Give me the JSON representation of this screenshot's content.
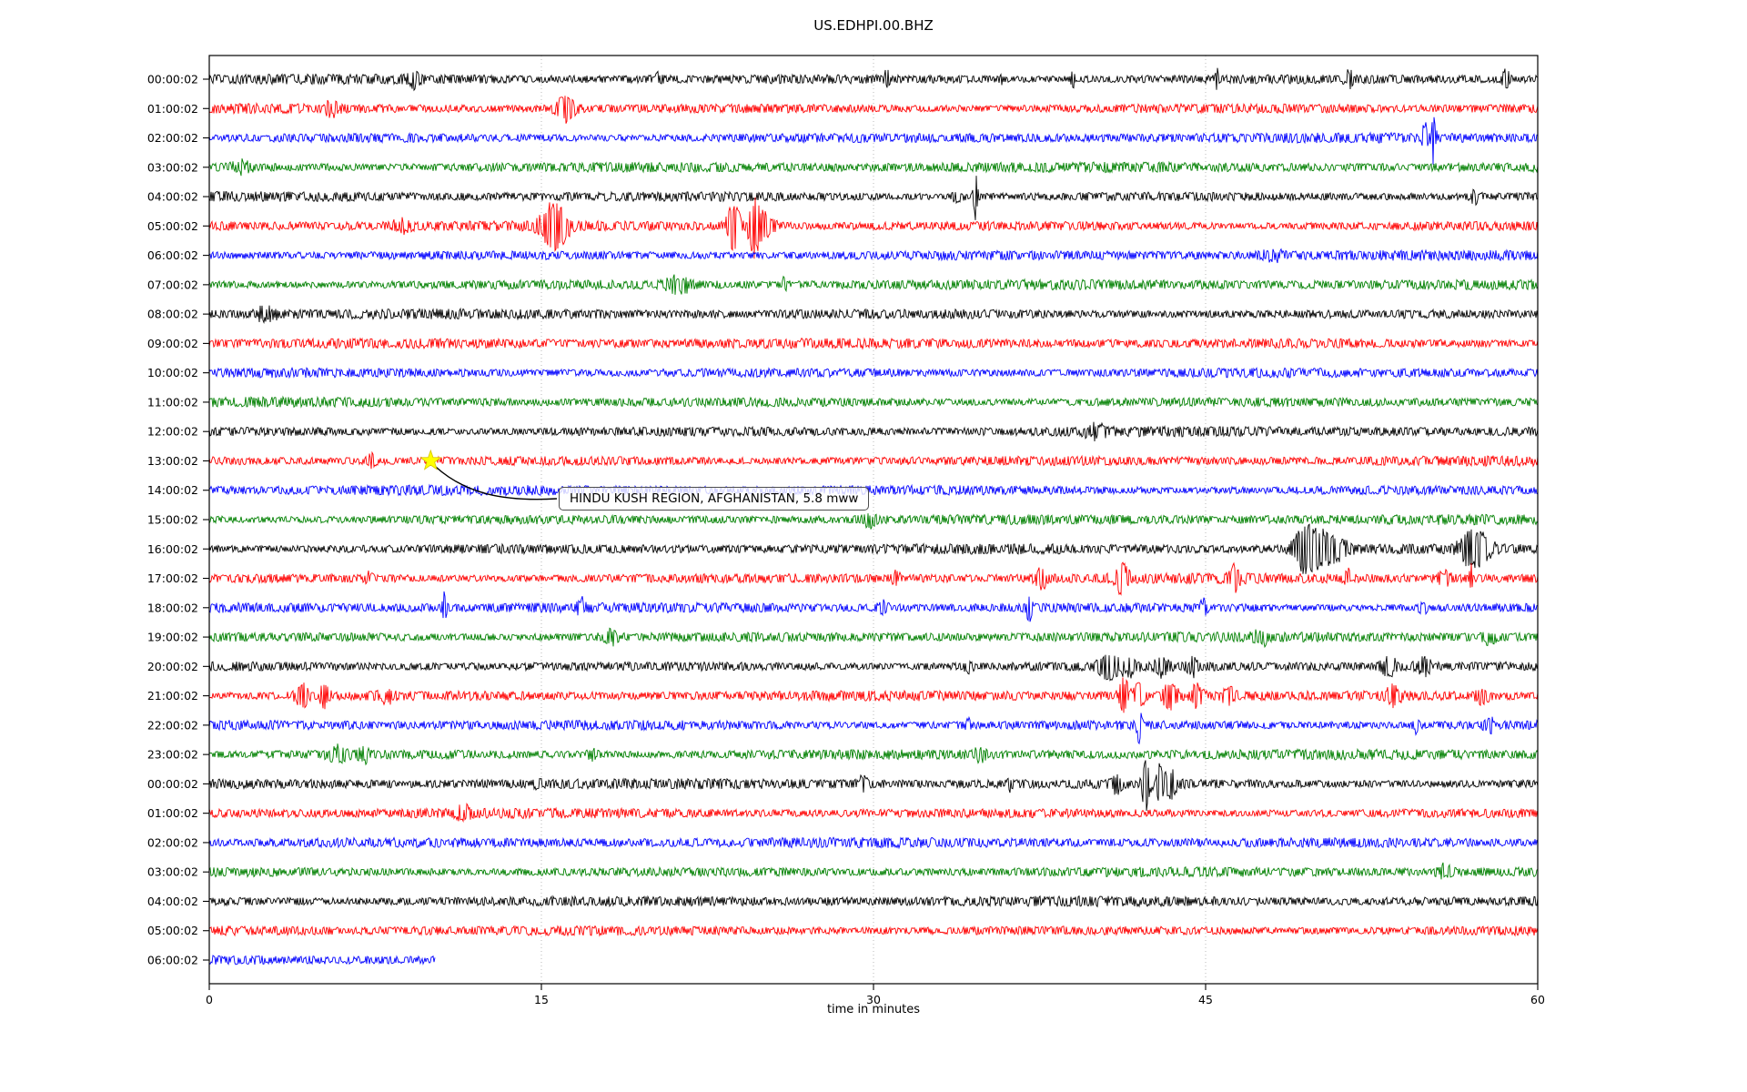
{
  "chart_data": {
    "type": "line",
    "subtype": "seismogram-helicorder-dayplot",
    "title": "US.EDHPI.00.BHZ",
    "xlabel": "time in minutes",
    "xlim": [
      0,
      60
    ],
    "x_ticks": [
      "0",
      "15",
      "30",
      "45",
      "60"
    ],
    "x_tick_values": [
      0,
      15,
      30,
      45,
      60
    ],
    "grid_x": [
      15,
      30,
      45
    ],
    "grid": true,
    "legend_position": "none",
    "colors": {
      "black": "#000000",
      "red": "#ff0000",
      "blue": "#0000ff",
      "green": "#008000",
      "grid": "#b3b3b3",
      "star": "#ffff00",
      "annotation_border": "#4d4d4d"
    },
    "annotation": {
      "text": "HINDU KUSH REGION, AFGHANISTAN, 5.8 mww",
      "star_trace_index": 13,
      "star_minute": 10,
      "star_icon": "star-marker"
    },
    "traces": [
      {
        "label": "00:00:02",
        "color": "#000000",
        "events": [
          [
            9.3,
            1.4,
            0.2
          ],
          [
            20.3,
            1.4,
            0.15
          ],
          [
            30.6,
            1.6,
            0.1
          ],
          [
            35.8,
            1.8,
            0.06
          ],
          [
            39.0,
            2.6,
            0.06
          ],
          [
            45.5,
            2.2,
            0.06
          ],
          [
            51.5,
            1.6,
            0.15
          ],
          [
            58.6,
            2.6,
            0.12
          ]
        ]
      },
      {
        "label": "01:00:02",
        "color": "#ff0000",
        "events": [
          [
            5.5,
            1.4,
            0.2
          ],
          [
            16.1,
            3.2,
            0.3
          ]
        ]
      },
      {
        "label": "02:00:02",
        "color": "#0000ff",
        "events": [
          [
            54.9,
            2.6,
            0.08
          ],
          [
            55.3,
            5.0,
            0.07
          ]
        ]
      },
      {
        "label": "03:00:02",
        "color": "#008000",
        "events": [
          [
            1.5,
            1.3,
            0.3
          ]
        ]
      },
      {
        "label": "04:00:02",
        "color": "#000000",
        "events": [
          [
            33.8,
            2.0,
            0.15
          ],
          [
            34.6,
            6.5,
            0.07
          ],
          [
            57.2,
            1.6,
            0.15
          ]
        ]
      },
      {
        "label": "05:00:02",
        "color": "#ff0000",
        "events": [
          [
            8.7,
            1.6,
            0.25
          ],
          [
            15.4,
            3.2,
            0.35
          ],
          [
            15.9,
            2.0,
            0.3
          ],
          [
            23.7,
            5.5,
            0.22
          ],
          [
            24.6,
            7.0,
            0.18
          ],
          [
            25.1,
            3.0,
            0.3
          ]
        ]
      },
      {
        "label": "06:00:02",
        "color": "#0000ff",
        "events": [
          [
            48.0,
            1.3,
            0.3
          ]
        ]
      },
      {
        "label": "07:00:02",
        "color": "#008000",
        "events": [
          [
            21.2,
            2.0,
            0.35
          ],
          [
            26.0,
            1.5,
            0.1
          ]
        ]
      },
      {
        "label": "08:00:02",
        "color": "#000000",
        "events": [
          [
            2.5,
            1.3,
            0.4
          ]
        ]
      },
      {
        "label": "09:00:02",
        "color": "#ff0000",
        "events": []
      },
      {
        "label": "10:00:02",
        "color": "#0000ff",
        "events": []
      },
      {
        "label": "11:00:02",
        "color": "#008000",
        "events": []
      },
      {
        "label": "12:00:02",
        "color": "#000000",
        "events": [
          [
            40.0,
            1.3,
            0.3
          ]
        ]
      },
      {
        "label": "13:00:02",
        "color": "#ff0000",
        "events": [
          [
            7.3,
            1.5,
            0.15
          ]
        ]
      },
      {
        "label": "14:00:02",
        "color": "#0000ff",
        "events": []
      },
      {
        "label": "15:00:02",
        "color": "#008000",
        "events": [
          [
            29.8,
            1.5,
            0.2
          ]
        ]
      },
      {
        "label": "16:00:02",
        "color": "#000000",
        "events": [
          [
            49.4,
            5.0,
            0.3
          ],
          [
            50.1,
            3.5,
            0.35
          ],
          [
            50.9,
            2.0,
            0.4
          ],
          [
            56.8,
            1.8,
            0.3
          ],
          [
            57.4,
            2.6,
            0.4
          ]
        ]
      },
      {
        "label": "17:00:02",
        "color": "#ff0000",
        "events": [
          [
            7.2,
            1.6,
            0.1
          ],
          [
            31.0,
            1.5,
            0.15
          ],
          [
            37.6,
            2.0,
            0.2
          ],
          [
            41.2,
            2.6,
            0.25
          ],
          [
            46.3,
            2.2,
            0.2
          ],
          [
            51.4,
            1.8,
            0.08
          ],
          [
            55.8,
            1.5,
            0.2
          ],
          [
            57.0,
            3.2,
            0.06
          ]
        ]
      },
      {
        "label": "18:00:02",
        "color": "#0000ff",
        "events": [
          [
            10.6,
            3.2,
            0.07
          ],
          [
            16.8,
            1.5,
            0.15
          ],
          [
            30.4,
            1.4,
            0.2
          ],
          [
            37.0,
            3.0,
            0.1
          ],
          [
            44.9,
            1.6,
            0.1
          ],
          [
            54.8,
            1.8,
            0.12
          ]
        ]
      },
      {
        "label": "19:00:02",
        "color": "#008000",
        "events": [
          [
            18.1,
            1.6,
            0.25
          ],
          [
            47.5,
            1.3,
            0.2
          ],
          [
            57.8,
            1.8,
            0.2
          ]
        ]
      },
      {
        "label": "20:00:02",
        "color": "#000000",
        "events": [
          [
            34.2,
            1.5,
            0.2
          ],
          [
            40.6,
            2.4,
            0.3
          ],
          [
            41.5,
            1.8,
            0.25
          ],
          [
            43.0,
            2.0,
            0.2
          ],
          [
            44.5,
            1.6,
            0.2
          ],
          [
            53.3,
            2.2,
            0.25
          ],
          [
            54.8,
            2.0,
            0.3
          ]
        ]
      },
      {
        "label": "21:00:02",
        "color": "#ff0000",
        "events": [
          [
            4.2,
            2.6,
            0.2
          ],
          [
            5.2,
            2.2,
            0.15
          ],
          [
            8.0,
            1.5,
            0.2
          ],
          [
            41.3,
            3.8,
            0.18
          ],
          [
            42.0,
            3.4,
            0.15
          ],
          [
            43.4,
            2.8,
            0.25
          ],
          [
            44.6,
            2.2,
            0.2
          ],
          [
            46.0,
            1.8,
            0.2
          ],
          [
            53.5,
            1.6,
            0.25
          ],
          [
            57.5,
            1.5,
            0.2
          ]
        ]
      },
      {
        "label": "22:00:02",
        "color": "#0000ff",
        "events": [
          [
            34.3,
            1.4,
            0.1
          ],
          [
            42.0,
            3.2,
            0.08
          ],
          [
            54.5,
            1.7,
            0.15
          ],
          [
            57.8,
            1.6,
            0.15
          ]
        ]
      },
      {
        "label": "23:00:02",
        "color": "#008000",
        "events": [
          [
            5.8,
            1.6,
            0.3
          ],
          [
            7.0,
            1.5,
            0.2
          ],
          [
            17.3,
            2.0,
            0.15
          ],
          [
            34.8,
            1.5,
            0.2
          ]
        ]
      },
      {
        "label": "00:00:02",
        "color": "#000000",
        "events": [
          [
            14.8,
            1.4,
            0.1
          ],
          [
            29.5,
            1.4,
            0.15
          ],
          [
            36.2,
            1.6,
            0.1
          ],
          [
            41.0,
            2.2,
            0.15
          ],
          [
            42.3,
            5.5,
            0.12
          ],
          [
            42.9,
            4.0,
            0.1
          ],
          [
            43.4,
            2.5,
            0.2
          ]
        ]
      },
      {
        "label": "01:00:02",
        "color": "#ff0000",
        "events": [
          [
            11.5,
            1.3,
            0.2
          ]
        ]
      },
      {
        "label": "02:00:02",
        "color": "#0000ff",
        "events": []
      },
      {
        "label": "03:00:02",
        "color": "#008000",
        "events": [
          [
            55.8,
            1.4,
            0.2
          ]
        ]
      },
      {
        "label": "04:00:02",
        "color": "#000000",
        "events": []
      },
      {
        "label": "05:00:02",
        "color": "#ff0000",
        "events": []
      },
      {
        "label": "06:00:02",
        "color": "#0000ff",
        "events": [],
        "end_min": 10.2
      }
    ]
  }
}
